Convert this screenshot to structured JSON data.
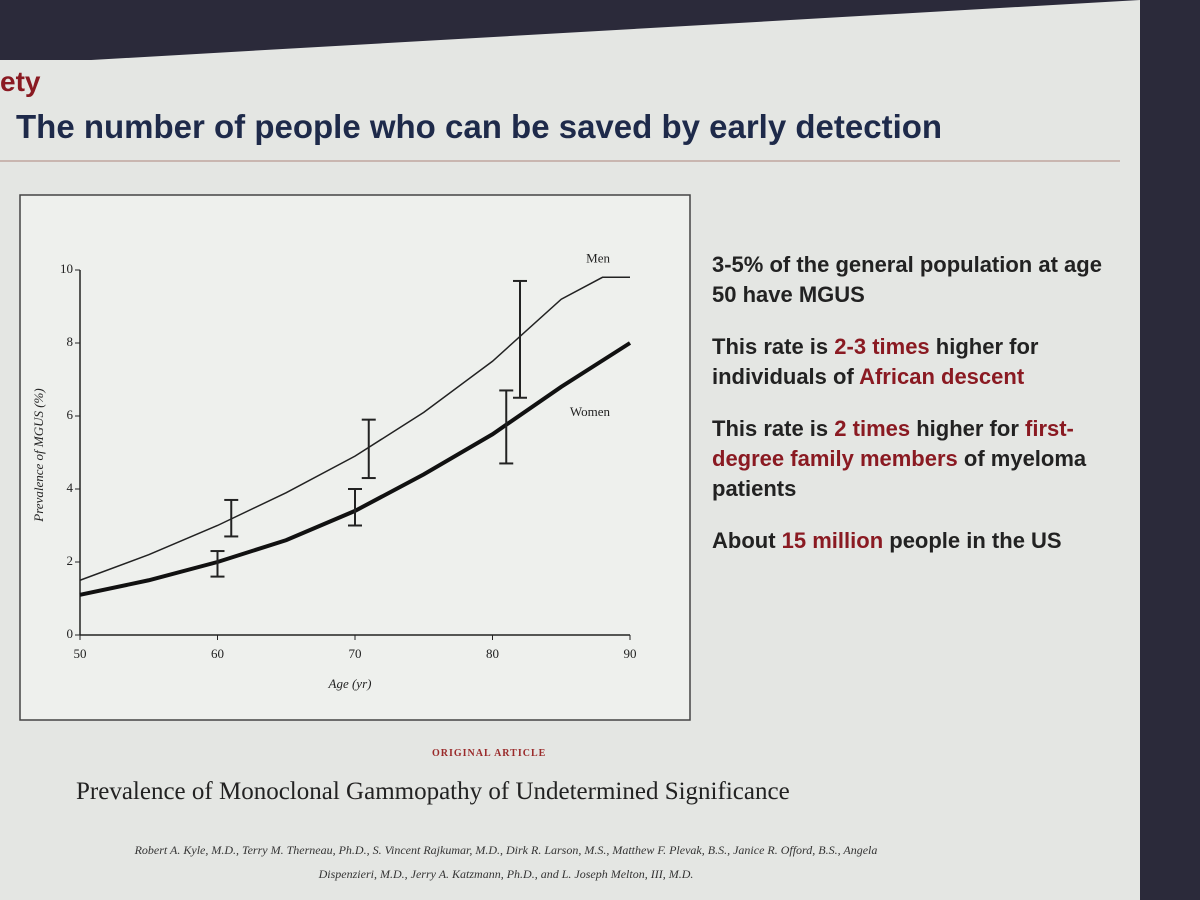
{
  "slide": {
    "org": "ety",
    "title": "The number of people who can be saved by early detection",
    "highlight_color": "#8a1a22",
    "bullets": [
      [
        {
          "text": "3-5% of the general population at age 50 have MGUS"
        }
      ],
      [
        {
          "text": "This rate is "
        },
        {
          "text": "2-3 times",
          "em": true
        },
        {
          "text": " higher for individuals of "
        },
        {
          "text": "African descent",
          "em": true
        }
      ],
      [
        {
          "text": "This rate is "
        },
        {
          "text": "2 times",
          "em": true
        },
        {
          "text": " higher for "
        },
        {
          "text": "first-degree family members",
          "em": true
        },
        {
          "text": " of myeloma patients"
        }
      ],
      [
        {
          "text": "About "
        },
        {
          "text": "15 million",
          "em": true
        },
        {
          "text": " people in the US"
        }
      ]
    ]
  },
  "article": {
    "kicker": "ORIGINAL ARTICLE",
    "title": "Prevalence of Monoclonal Gammopathy of Undetermined Significance",
    "authors": [
      "Robert A. Kyle, M.D., Terry M. Therneau, Ph.D., S. Vincent Rajkumar, M.D., Dirk R. Larson, M.S., Matthew F. Plevak, B.S., Janice R. Offord, B.S., Angela",
      "Dispenzieri, M.D., Jerry A. Katzmann, Ph.D., and L. Joseph Melton, III, M.D."
    ]
  },
  "chart_data": {
    "type": "line",
    "x_label": "Age (yr)",
    "y_label": "Prevalence of MGUS (%)",
    "xlim": [
      50,
      90
    ],
    "ylim": [
      0,
      10
    ],
    "xticks": [
      50,
      60,
      70,
      80,
      90
    ],
    "yticks": [
      0,
      2,
      4,
      6,
      8,
      10
    ],
    "series": [
      {
        "name": "Men",
        "color": "#222222",
        "linewidth": 1.5,
        "x": [
          50,
          55,
          60,
          65,
          70,
          75,
          80,
          85,
          88,
          90
        ],
        "values": [
          1.5,
          2.2,
          3.0,
          3.9,
          4.9,
          6.1,
          7.5,
          9.2,
          9.8,
          9.8
        ],
        "errors": {
          "x": [
            61,
            71,
            82
          ],
          "values": [
            3.2,
            5.1,
            8.1
          ],
          "err": [
            0.5,
            0.8,
            1.6
          ]
        }
      },
      {
        "name": "Women",
        "color": "#111111",
        "linewidth": 4,
        "x": [
          50,
          55,
          60,
          65,
          70,
          75,
          80,
          85,
          90
        ],
        "values": [
          1.1,
          1.5,
          2.0,
          2.6,
          3.4,
          4.4,
          5.5,
          6.8,
          8.0
        ],
        "errors": {
          "x": [
            60,
            70,
            81
          ],
          "values": [
            1.95,
            3.5,
            5.7
          ],
          "err": [
            0.35,
            0.5,
            1.0
          ]
        }
      }
    ]
  }
}
